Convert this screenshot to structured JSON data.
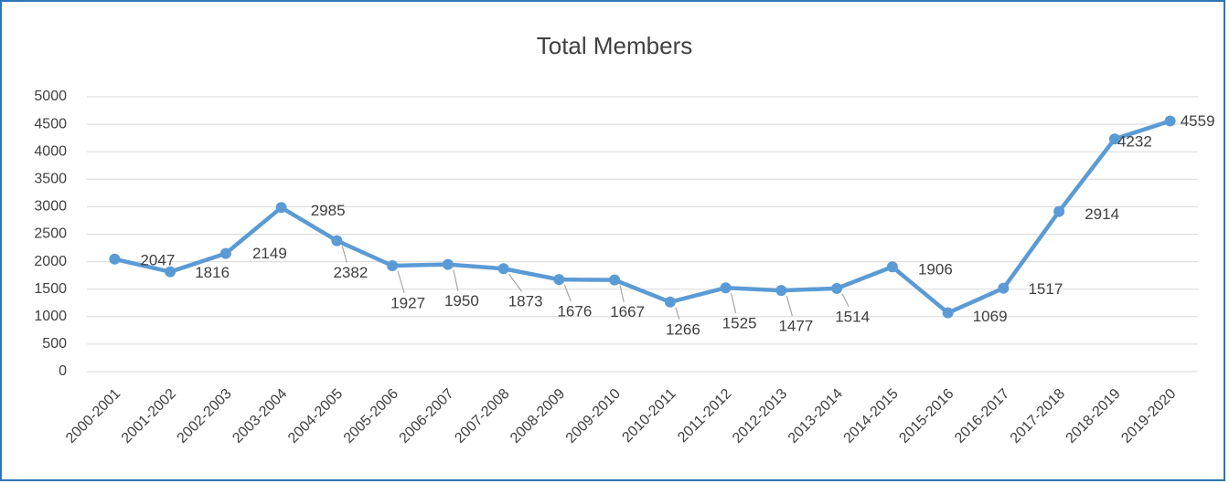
{
  "chart_data": {
    "type": "line",
    "title": "Total Members",
    "categories": [
      "2000-2001",
      "2001-2002",
      "2002-2003",
      "2003-2004",
      "2004-2005",
      "2005-2006",
      "2006-2007",
      "2007-2008",
      "2008-2009",
      "2009-2010",
      "2010-2011",
      "2011-2012",
      "2012-2013",
      "2013-2014",
      "2014-2015",
      "2015-2016",
      "2016-2017",
      "2017-2018",
      "2018-2019",
      "2019-2020"
    ],
    "values": [
      2047,
      1816,
      2149,
      2985,
      2382,
      1927,
      1950,
      1873,
      1676,
      1667,
      1266,
      1525,
      1477,
      1514,
      1906,
      1069,
      1517,
      2914,
      4232,
      4559
    ],
    "color": "#5b9bd5",
    "ylim": [
      0,
      5000
    ],
    "yticks": [
      0,
      500,
      1000,
      1500,
      2000,
      2500,
      3000,
      3500,
      4000,
      4500,
      5000
    ],
    "grid": true
  }
}
